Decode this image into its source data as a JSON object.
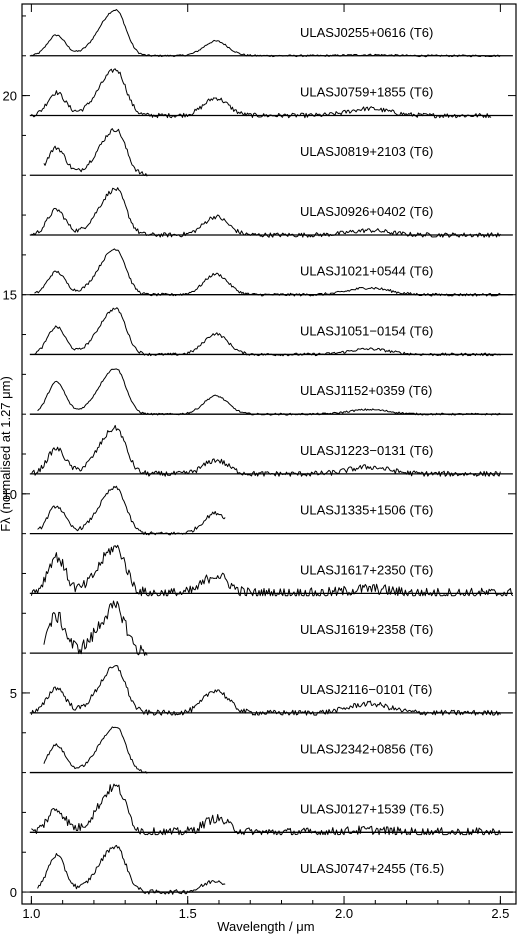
{
  "chart_data": {
    "type": "line",
    "title": "",
    "xlabel": "Wavelength / μm",
    "ylabel": "Fλ (normalised at 1.27 μm)",
    "xlim": [
      0.97,
      2.55
    ],
    "ylim": [
      -0.3,
      22.3
    ],
    "grid": false,
    "xticks": [
      {
        "value": 1.0,
        "label": "1.0"
      },
      {
        "value": 1.5,
        "label": "1.5"
      },
      {
        "value": 2.0,
        "label": "2.0"
      },
      {
        "value": 2.5,
        "label": "2.5"
      }
    ],
    "yticks": [
      {
        "value": 0,
        "label": "0"
      },
      {
        "value": 5,
        "label": "5"
      },
      {
        "value": 10,
        "label": "10"
      },
      {
        "value": 15,
        "label": "15"
      },
      {
        "value": 20,
        "label": "20"
      }
    ],
    "series": [
      {
        "name": "ULASJ0255+0616 (T6)",
        "offset": 21.0,
        "xmin": 1.0,
        "xmax": 2.5,
        "noise": 0.02,
        "peaks": [
          0.45,
          1.0,
          0.32,
          0.02
        ]
      },
      {
        "name": "ULASJ0759+1855 (T6)",
        "offset": 19.5,
        "xmin": 1.0,
        "xmax": 2.47,
        "noise": 0.05,
        "peaks": [
          0.5,
          1.0,
          0.38,
          0.15
        ]
      },
      {
        "name": "ULASJ0819+2103 (T6)",
        "offset": 18.0,
        "xmin": 1.04,
        "xmax": 1.37,
        "noise": 0.05,
        "peaks": [
          0.6,
          1.0,
          0.0,
          0.0
        ]
      },
      {
        "name": "ULASJ0926+0402 (T6)",
        "offset": 16.5,
        "xmin": 1.0,
        "xmax": 2.5,
        "noise": 0.05,
        "peaks": [
          0.55,
          1.0,
          0.4,
          0.1
        ]
      },
      {
        "name": "ULASJ1021+0544 (T6)",
        "offset": 15.0,
        "xmin": 1.01,
        "xmax": 2.5,
        "noise": 0.03,
        "peaks": [
          0.5,
          1.0,
          0.45,
          0.15
        ]
      },
      {
        "name": "ULASJ1051−0154 (T6)",
        "offset": 13.5,
        "xmin": 1.01,
        "xmax": 2.5,
        "noise": 0.03,
        "peaks": [
          0.6,
          1.0,
          0.45,
          0.12
        ]
      },
      {
        "name": "ULASJ1152+0359 (T6)",
        "offset": 12.0,
        "xmin": 1.02,
        "xmax": 2.5,
        "noise": 0.02,
        "peaks": [
          0.7,
          1.0,
          0.4,
          0.1
        ]
      },
      {
        "name": "ULASJ1223−0131 (T6)",
        "offset": 10.5,
        "xmin": 1.0,
        "xmax": 2.5,
        "noise": 0.06,
        "peaks": [
          0.55,
          1.0,
          0.3,
          0.15
        ]
      },
      {
        "name": "ULASJ1335+1506 (T6)",
        "offset": 9.0,
        "xmin": 1.02,
        "xmax": 1.62,
        "noise": 0.04,
        "peaks": [
          0.6,
          1.0,
          0.45,
          0.0
        ]
      },
      {
        "name": "ULASJ1617+2350 (T6)",
        "offset": 7.5,
        "xmin": 1.0,
        "xmax": 2.54,
        "noise": 0.12,
        "peaks": [
          0.8,
          1.0,
          0.4,
          0.1
        ]
      },
      {
        "name": "ULASJ1619+2358 (T6)",
        "offset": 6.0,
        "xmin": 1.04,
        "xmax": 1.37,
        "noise": 0.15,
        "peaks": [
          0.8,
          1.0,
          0.0,
          0.0
        ]
      },
      {
        "name": "ULASJ2116−0101 (T6)",
        "offset": 4.5,
        "xmin": 1.0,
        "xmax": 2.5,
        "noise": 0.06,
        "peaks": [
          0.55,
          1.0,
          0.5,
          0.2
        ]
      },
      {
        "name": "ULASJ2342+0856 (T6)",
        "offset": 3.0,
        "xmin": 1.04,
        "xmax": 1.37,
        "noise": 0.03,
        "peaks": [
          0.6,
          1.0,
          0.0,
          0.0
        ]
      },
      {
        "name": "ULASJ0127+1539 (T6.5)",
        "offset": 1.5,
        "xmin": 1.0,
        "xmax": 2.5,
        "noise": 0.1,
        "peaks": [
          0.5,
          1.0,
          0.3,
          0.05
        ]
      },
      {
        "name": "ULASJ0747+2455 (T6.5)",
        "offset": 0.0,
        "xmin": 1.02,
        "xmax": 1.62,
        "noise": 0.05,
        "peaks": [
          0.8,
          1.0,
          0.25,
          0.0
        ]
      }
    ]
  }
}
